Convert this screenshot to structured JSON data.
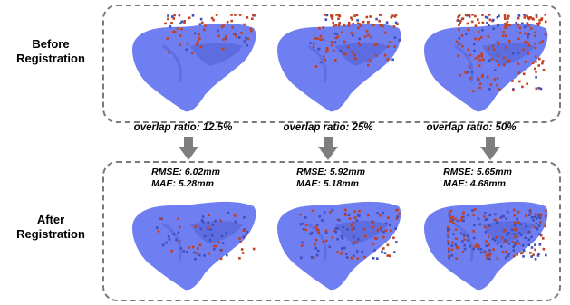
{
  "labels": {
    "before_line1": "Before",
    "before_line2": "Registration",
    "after_line1": "After",
    "after_line2": "Registration"
  },
  "columns": [
    {
      "overlap": "overlap ratio: 12.5%",
      "rmse": "RMSE: 6.02mm",
      "mae": "MAE: 5.28mm"
    },
    {
      "overlap": "overlap ratio: 25%",
      "rmse": "RMSE: 5.92mm",
      "mae": "MAE: 5.18mm"
    },
    {
      "overlap": "overlap ratio: 50%",
      "rmse": "RMSE: 5.65mm",
      "mae": "MAE: 4.68mm"
    }
  ],
  "colors": {
    "liver": "#6f7ef0",
    "liver_shade": "#5566d8",
    "points_red": "#c2401f",
    "points_blue": "#3f4fb8",
    "arrow": "#7e7e7e"
  },
  "icons": [
    "liver-mesh",
    "point-cloud",
    "down-arrow-icon"
  ]
}
